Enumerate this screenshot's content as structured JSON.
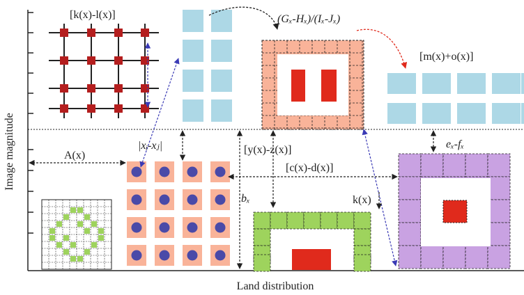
{
  "axes": {
    "x_label": "Land distribution",
    "y_label": "Image magnitude"
  },
  "labels": {
    "k_minus_l": "[k(x)-l(x)]",
    "g_h_over_i_j": "(Gₓ-Hₓ)/(Iₓ-Jₓ)",
    "m_plus_o": "[m(x)+o(x)]",
    "a_x": "A(x)",
    "xi_minus_xj": "|xᵢ-xⱼ|",
    "y_minus_z": "[y(x)-z(x)]",
    "c_minus_d": "[c(x)-d(x)]",
    "e_minus_f": "eₓ-fₓ",
    "b_x": "bₓ",
    "k_x": "k(x)"
  },
  "colors": {
    "light_blue": "#add8e6",
    "salmon": "#f9b399",
    "red": "#e02a1c",
    "dark_red": "#b41e1e",
    "blue_dot": "#4a4aa8",
    "green": "#9ed35d",
    "purple": "#c9a2e2",
    "arrow_blue": "#3a3ab5",
    "arrow_red": "#e02a1c"
  }
}
